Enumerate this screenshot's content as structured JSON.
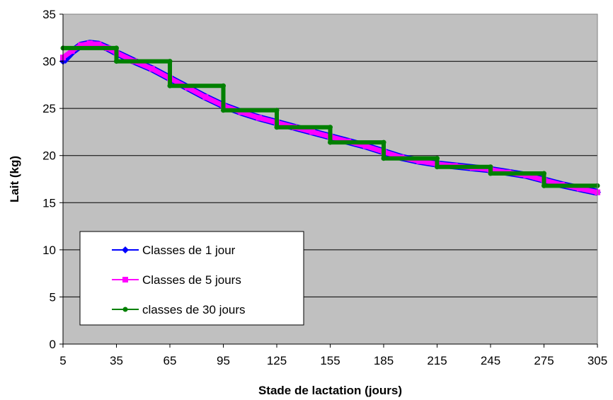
{
  "chart_data": {
    "type": "line",
    "xlabel": "Stade de lactation (jours)",
    "ylabel": "Lait (kg)",
    "xlim": [
      5,
      305
    ],
    "ylim": [
      0,
      35
    ],
    "x_ticks": [
      5,
      35,
      65,
      95,
      125,
      155,
      185,
      215,
      245,
      275,
      305
    ],
    "y_ticks": [
      0,
      5,
      10,
      15,
      20,
      25,
      30,
      35
    ],
    "grid": "horizontal",
    "legend": "bottom-left",
    "plot_bg": "#c0c0c0",
    "series": [
      {
        "name": "Classes de 1 jour",
        "color": "#0000ff",
        "marker": "diamond",
        "x": [
          5,
          10,
          15,
          20,
          25,
          30,
          35,
          45,
          55,
          65,
          75,
          85,
          95,
          105,
          115,
          125,
          135,
          145,
          155,
          165,
          175,
          185,
          195,
          205,
          215,
          225,
          235,
          245,
          255,
          265,
          275,
          285,
          295,
          305
        ],
        "y": [
          30.0,
          31.0,
          31.7,
          31.9,
          31.8,
          31.4,
          30.9,
          30.0,
          29.2,
          28.2,
          27.2,
          26.2,
          25.3,
          24.6,
          24.0,
          23.5,
          23.0,
          22.5,
          22.0,
          21.5,
          21.0,
          20.4,
          19.8,
          19.4,
          19.1,
          18.9,
          18.7,
          18.5,
          18.2,
          17.9,
          17.4,
          16.9,
          16.5,
          16.1
        ]
      },
      {
        "name": "Classes de 5 jours",
        "color": "#ff00ff",
        "marker": "square",
        "x": [
          5,
          10,
          15,
          20,
          25,
          30,
          35,
          45,
          55,
          65,
          75,
          85,
          95,
          105,
          115,
          125,
          135,
          145,
          155,
          165,
          175,
          185,
          195,
          205,
          215,
          225,
          235,
          245,
          255,
          265,
          275,
          285,
          295,
          305
        ],
        "y": [
          30.4,
          31.1,
          31.7,
          31.9,
          31.8,
          31.4,
          30.9,
          30.0,
          29.2,
          28.2,
          27.2,
          26.2,
          25.3,
          24.6,
          24.0,
          23.5,
          23.0,
          22.5,
          22.0,
          21.5,
          21.0,
          20.4,
          19.8,
          19.4,
          19.1,
          18.9,
          18.7,
          18.5,
          18.2,
          17.9,
          17.4,
          16.9,
          16.5,
          16.1
        ]
      },
      {
        "name": "classes de 30 jours",
        "color": "#008000",
        "marker": "circle",
        "x": [
          5,
          35,
          35,
          65,
          65,
          95,
          95,
          125,
          125,
          155,
          155,
          185,
          185,
          215,
          215,
          245,
          245,
          275,
          275,
          305
        ],
        "y": [
          31.4,
          31.4,
          30.0,
          30.0,
          27.4,
          27.4,
          24.8,
          24.8,
          23.0,
          23.0,
          21.4,
          21.4,
          19.7,
          19.7,
          18.8,
          18.8,
          18.1,
          18.1,
          16.8,
          16.8
        ]
      }
    ]
  }
}
